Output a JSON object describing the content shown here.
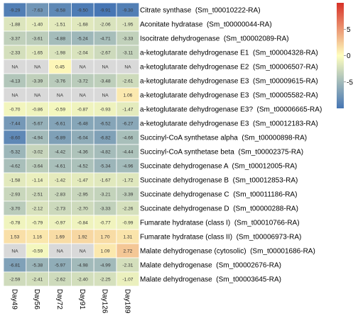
{
  "chart_data": {
    "type": "heatmap",
    "title": "",
    "columns": [
      "Day49",
      "Day56",
      "Day72",
      "Day91",
      "Day126",
      "Day189"
    ],
    "rows": [
      "Citrate synthase  (Sm_t00010222-RA)",
      "Aconitate hydratase  (Sm_t00000044-RA)",
      "Isocitrate dehydrogenase  (Sm_t00002089-RA)",
      "a-ketoglutarate dehydrogenase E1  (Sm_t00004328-RA)",
      "a-ketoglutarate dehydrogenase E2  (Sm_t00006507-RA)",
      "a-ketoglutarate dehydrogenase E3  (Sm_t00009615-RA)",
      "a-ketoglutarate dehydrogenase E3  (Sm_t00005582-RA)",
      "a-ketoglutarate dehydrogenase E3?  (Sm_t00006665-RA)",
      "a-ketoglutarate dehydrogenase E3  (Sm_t00012183-RA)",
      "Succinyl-CoA synthetase alpha  (Sm_t00000898-RA)",
      "Succinyl-CoA synthetase beta  (Sm_t00002375-RA)",
      "Succinate dehydrogenase A  (Sm_t00012005-RA)",
      "Succinate dehydrogenase B  (Sm_t00012853-RA)",
      "Succinate dehydrogenase C  (Sm_t00011186-RA)",
      "Succinate dehydrogenase D  (Sm_t00000288-RA)",
      "Fumarate hydratase (class I)  (Sm_t00010766-RA)",
      "Fumarate hydratase (class II)  (Sm_t00006973-RA)",
      "Malate dehydrogenase (cytosolic)  (Sm_t00001686-RA)",
      "Malate dehydrogenase  (Sm_t00002676-RA)",
      "Malate dehydrogenase  (Sm_t00003645-RA)"
    ],
    "values": [
      [
        "-9.29",
        "-7.63",
        "-8.58",
        "-9.50",
        "-9.91",
        "-9.30"
      ],
      [
        "-1.88",
        "-1.40",
        "-1.51",
        "-1.68",
        "-2.06",
        "-1.95"
      ],
      [
        "-3.37",
        "-3.61",
        "-4.88",
        "-5.24",
        "-4.71",
        "-3.33"
      ],
      [
        "-2.33",
        "-1.65",
        "-1.98",
        "-2.04",
        "-2.67",
        "-3.11"
      ],
      [
        "NA",
        "NA",
        "0.45",
        "NA",
        "NA",
        "NA"
      ],
      [
        "-4.13",
        "-3.39",
        "-3.76",
        "-3.72",
        "-3.48",
        "-2.61"
      ],
      [
        "NA",
        "NA",
        "NA",
        "NA",
        "NA",
        "1.06"
      ],
      [
        "-0.70",
        "-0.86",
        "-0.59",
        "-0.87",
        "-0.93",
        "-1.47"
      ],
      [
        "-7.44",
        "-5.67",
        "-6.61",
        "-6.48",
        "-6.52",
        "-6.27"
      ],
      [
        "-8.60",
        "-4.94",
        "-6.89",
        "-6.04",
        "-6.82",
        "-4.66"
      ],
      [
        "-5.32",
        "-3.02",
        "-4.42",
        "-4.36",
        "-4.82",
        "-4.44"
      ],
      [
        "-4.62",
        "-3.64",
        "-4.61",
        "-4.52",
        "-5.34",
        "-4.96"
      ],
      [
        "-1.58",
        "-1.14",
        "-1.42",
        "-1.47",
        "-1.67",
        "-1.72"
      ],
      [
        "-2.93",
        "-2.51",
        "-2.83",
        "-2.95",
        "-3.21",
        "-3.39"
      ],
      [
        "-3.70",
        "-2.12",
        "-2.73",
        "-2.70",
        "-3.33",
        "-2.26"
      ],
      [
        "-0.78",
        "-0.79",
        "-0.97",
        "-0.84",
        "-0.77",
        "-0.99"
      ],
      [
        "1.53",
        "1.16",
        "1.69",
        "1.92",
        "1.70",
        "1.31"
      ],
      [
        "NA",
        "-0.59",
        "NA",
        "NA",
        "1.09",
        "2.72"
      ],
      [
        "-6.81",
        "-5.38",
        "-5.97",
        "-4.98",
        "-4.99",
        "-2.31"
      ],
      [
        "-2.59",
        "-2.41",
        "-2.62",
        "-2.40",
        "-2.25",
        "-1.07"
      ]
    ],
    "na_label": "NA",
    "na_color": "#d9d9d9",
    "color_range": [
      -10,
      10
    ],
    "colors": {
      "low": "#4575b4",
      "mid": "#ffffbf",
      "high": "#d73027"
    },
    "legend": {
      "placement": "right-top",
      "ticks": [
        5,
        0,
        -5
      ]
    },
    "grid": true
  }
}
